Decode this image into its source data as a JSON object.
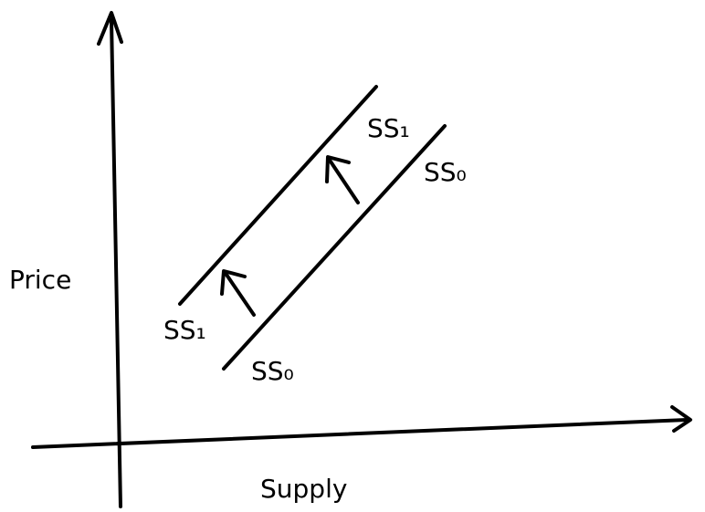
{
  "axes": {
    "y_label": "Price",
    "x_label": "Supply"
  },
  "curves": [
    {
      "label": "SS₁"
    },
    {
      "label": "SS₀"
    }
  ]
}
